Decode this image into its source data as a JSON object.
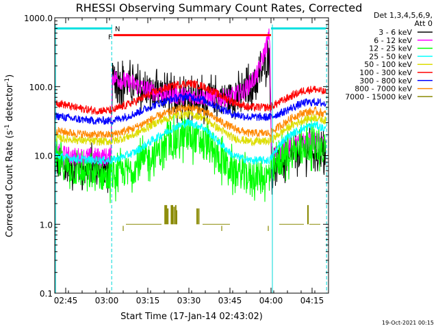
{
  "chart_data": {
    "type": "line",
    "title": "RHESSI Observing Summary Count Rates, Corrected",
    "xlabel": "Start Time (17-Jan-14 02:43:02)",
    "ylabel_main": "Corrected Count Rate (s",
    "ylabel_exp1": "-1",
    "ylabel_mid": " detector",
    "ylabel_exp2": "-1",
    "ylabel_end": ")",
    "yscale": "log",
    "ylim": [
      0.1,
      1000
    ],
    "xlim_min": [
      161,
      261
    ],
    "ytick_values": [
      0.1,
      1,
      10,
      100,
      1000
    ],
    "ytick_labels": [
      "0.1",
      "1.0",
      "10.0",
      "100.0",
      "1000.0"
    ],
    "xtick_values": [
      165,
      180,
      195,
      210,
      225,
      240,
      255
    ],
    "xtick_labels": [
      "02:45",
      "03:00",
      "03:15",
      "03:30",
      "03:45",
      "04:00",
      "04:15"
    ],
    "legend_header": [
      "Det 1,3,4,5,6,9,",
      "Att 0"
    ],
    "legend_position": "right",
    "footer_timestamp": "19-Oct-2021 00:15",
    "flags": {
      "night_label": "N",
      "flare_label": "F",
      "night_intervals": [
        [
          161,
          182
        ],
        [
          240,
          260
        ]
      ],
      "flare_interval": [
        181,
        240
      ],
      "night_edges": [
        161.3,
        181.8,
        240.5,
        260.3
      ]
    },
    "series": [
      {
        "name": "3 - 6 keV",
        "color": "#000000",
        "x": [
          161,
          168,
          175,
          181.5,
          182,
          185,
          190,
          195,
          200,
          205,
          210,
          215,
          220,
          225,
          230,
          235,
          239.5,
          240.2,
          244,
          248,
          252,
          256,
          260
        ],
        "y": [
          7.5,
          6.5,
          6.5,
          6.5,
          135,
          118,
          100,
          85,
          75,
          70,
          68,
          68,
          66,
          70,
          80,
          120,
          300,
          6.5,
          8,
          10,
          12,
          12,
          10
        ]
      },
      {
        "name": "6 - 12 keV",
        "color": "#ff00ff",
        "x": [
          161,
          168,
          175,
          181.5,
          182,
          185,
          190,
          195,
          200,
          205,
          210,
          215,
          220,
          225,
          230,
          235,
          239.5,
          240.2,
          244,
          248,
          252,
          256,
          260
        ],
        "y": [
          11,
          9.5,
          9.5,
          9.5,
          140,
          125,
          108,
          90,
          80,
          75,
          73,
          72,
          68,
          70,
          85,
          150,
          560,
          9.5,
          12,
          14,
          16,
          16,
          15
        ]
      },
      {
        "name": "12 - 25 keV",
        "color": "#00ff00",
        "x": [
          161,
          168,
          175,
          182,
          190,
          198,
          205,
          210,
          215,
          220,
          226,
          232,
          239.5,
          244,
          248,
          252,
          256,
          260
        ],
        "y": [
          8.5,
          6,
          5,
          5,
          6.5,
          11,
          17,
          19,
          16,
          10,
          6,
          5,
          5,
          9,
          11,
          14,
          15,
          12
        ]
      },
      {
        "name": "25 - 50 keV",
        "color": "#00ffff",
        "x": [
          161,
          168,
          175,
          182,
          190,
          198,
          205,
          210,
          215,
          220,
          226,
          232,
          239.5,
          244,
          248,
          252,
          256,
          260
        ],
        "y": [
          10,
          9,
          8.5,
          8.5,
          11,
          18,
          26,
          30,
          26,
          17,
          10,
          8.5,
          8.5,
          16,
          21,
          25,
          28,
          24
        ]
      },
      {
        "name": "50 - 100 keV",
        "color": "#dddd00",
        "x": [
          161,
          168,
          175,
          182,
          190,
          198,
          205,
          210,
          215,
          220,
          226,
          232,
          239.5,
          244,
          248,
          252,
          256,
          260
        ],
        "y": [
          18,
          17,
          16,
          16,
          20,
          30,
          38,
          40,
          36,
          26,
          18,
          16,
          16,
          22,
          28,
          33,
          36,
          32
        ]
      },
      {
        "name": "100 - 300 keV",
        "color": "#ff0000",
        "x": [
          161,
          168,
          175,
          182,
          190,
          198,
          205,
          210,
          215,
          220,
          226,
          232,
          239.5,
          244,
          248,
          252,
          256,
          260
        ],
        "y": [
          60,
          50,
          45,
          45,
          60,
          85,
          105,
          112,
          102,
          80,
          60,
          50,
          50,
          62,
          75,
          88,
          92,
          82
        ]
      },
      {
        "name": "300 - 800 keV",
        "color": "#0000ff",
        "x": [
          161,
          168,
          175,
          182,
          190,
          198,
          205,
          210,
          215,
          220,
          226,
          232,
          239.5,
          244,
          248,
          252,
          256,
          260
        ],
        "y": [
          38,
          34,
          32,
          32,
          40,
          55,
          68,
          72,
          65,
          52,
          40,
          36,
          36,
          42,
          50,
          58,
          60,
          56
        ]
      },
      {
        "name": "800 - 7000 keV",
        "color": "#ff8800",
        "x": [
          161,
          168,
          175,
          182,
          190,
          198,
          205,
          210,
          215,
          220,
          226,
          232,
          239.5,
          244,
          248,
          252,
          256,
          260
        ],
        "y": [
          23,
          21,
          20,
          20,
          25,
          36,
          46,
          50,
          45,
          34,
          25,
          21,
          21,
          28,
          36,
          42,
          44,
          40
        ]
      },
      {
        "name": "7000 - 15000 keV",
        "color": "#888800",
        "events": [
          {
            "x": 187,
            "x_end": 200,
            "y": 1.0
          },
          {
            "x": 201.3,
            "y": 1.9
          },
          {
            "x": 201.8,
            "y": 1.9
          },
          {
            "x": 202.3,
            "y": 1.7
          },
          {
            "x": 203.6,
            "y": 1.9
          },
          {
            "x": 204.0,
            "y": 1.9
          },
          {
            "x": 204.6,
            "y": 1.8
          },
          {
            "x": 205.2,
            "y": 1.9
          },
          {
            "x": 205.5,
            "y": 1.6
          },
          {
            "x": 208.5,
            "y": 1.0
          },
          {
            "x": 210,
            "y": 1.0
          },
          {
            "x": 212,
            "y": 1.0
          },
          {
            "x": 213,
            "y": 1.7
          },
          {
            "x": 213.6,
            "y": 1.7
          },
          {
            "x": 215,
            "x_end": 225,
            "y": 1.0
          },
          {
            "x": 243,
            "x_end": 252,
            "y": 1.0
          },
          {
            "x": 253.5,
            "y": 1.9
          },
          {
            "x": 254,
            "x_end": 258,
            "y": 1.0
          }
        ],
        "dips": [
          {
            "x": 186,
            "y": 0.8
          },
          {
            "x": 222,
            "y": 0.8
          },
          {
            "x": 239,
            "y": 0.8
          }
        ]
      }
    ]
  }
}
